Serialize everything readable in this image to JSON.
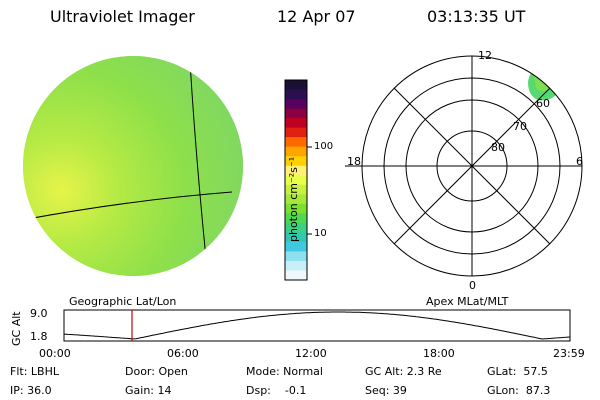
{
  "header": {
    "instrument": "Ultraviolet Imager",
    "date": "12 Apr 07",
    "time": "03:13:35 UT"
  },
  "left_panel": {
    "caption": "Geographic Lat/Lon"
  },
  "colorbar": {
    "unit_label": "photon cm⁻²s⁻¹",
    "ticks": [
      "100",
      "10"
    ],
    "colors": [
      "#1a1033",
      "#2a1050",
      "#5a0060",
      "#8a0040",
      "#c00020",
      "#e02010",
      "#ff6a00",
      "#ffa500",
      "#ffd000",
      "#fff176",
      "#e8ff4a",
      "#c8f040",
      "#a6e838",
      "#7ce030",
      "#50d850",
      "#3cd080",
      "#30c8b0",
      "#40c8e0",
      "#8ee0f0",
      "#c8eef6",
      "#eef7fb"
    ]
  },
  "right_panel": {
    "caption": "Apex MLat/MLT",
    "mlt_labels": {
      "top": "12",
      "left": "18",
      "right": "6",
      "bottom": "0"
    },
    "lat_labels": [
      "60",
      "70",
      "80"
    ]
  },
  "timeline": {
    "y_label": "GC Alt",
    "y_ticks": [
      "9.0",
      "1.8"
    ],
    "x_ticks": [
      "00:00",
      "06:00",
      "12:00",
      "18:00",
      "23:59"
    ],
    "current_time_hours": 3.226,
    "marker_color": "#cc0000"
  },
  "footer": {
    "flt": "Flt: LBHL",
    "ip": "IP: 36.0",
    "door": "Door: Open",
    "gain": "Gain: 14",
    "mode": "Mode: Normal",
    "dsp": "Dsp:    -0.1",
    "gc_alt": "GC Alt: 2.3 Re",
    "seq": "Seq: 39",
    "glat": "GLat:  57.5",
    "glon": "GLon:  87.3"
  }
}
